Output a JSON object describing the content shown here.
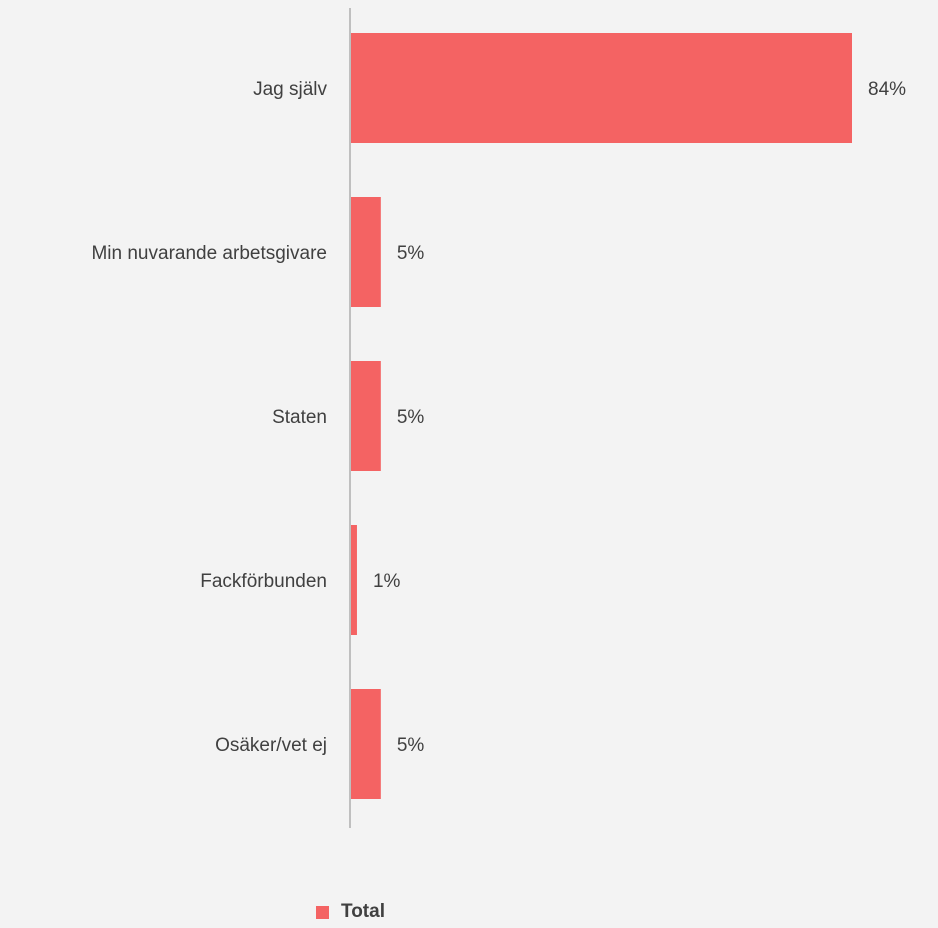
{
  "chart_data": {
    "type": "bar",
    "orientation": "horizontal",
    "categories": [
      "Jag själv",
      "Min nuvarande arbetsgivare",
      "Staten",
      "Fackförbunden",
      "Osäker/vet ej"
    ],
    "series": [
      {
        "name": "Total",
        "values": [
          84,
          5,
          5,
          1,
          5
        ],
        "labels": [
          "84%",
          "5%",
          "5%",
          "1%",
          "5%"
        ],
        "color": "#f46363"
      }
    ],
    "xlim": [
      0,
      84
    ],
    "grid": false,
    "legend_position": "bottom"
  }
}
